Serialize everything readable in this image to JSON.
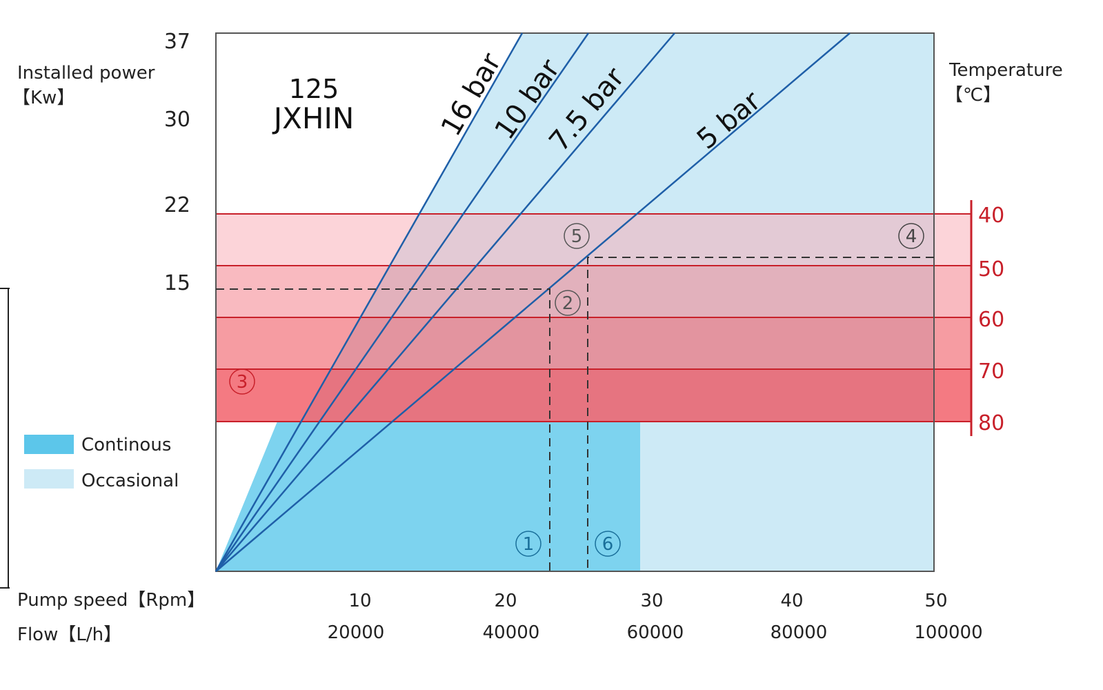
{
  "chart_data": {
    "type": "area",
    "title": [
      "125",
      "JXHIN"
    ],
    "ylabel": [
      "Installed power",
      "【Kw】"
    ],
    "y_ticks": [
      "37",
      "30",
      "22",
      "15"
    ],
    "y2label": [
      "Temperature",
      "【℃】"
    ],
    "y2_ticks": [
      "40",
      "50",
      "60",
      "70",
      "80"
    ],
    "xlabel": "Pump speed【Rpm】",
    "x_ticks": [
      "10",
      "20",
      "30",
      "40",
      "50"
    ],
    "x2label": "Flow【L/h】",
    "x2_ticks": [
      "20000",
      "40000",
      "60000",
      "80000",
      "100000"
    ],
    "series": [
      {
        "name": "16 bar"
      },
      {
        "name": "10 bar"
      },
      {
        "name": "7.5 bar"
      },
      {
        "name": "5 bar"
      }
    ],
    "legend": [
      {
        "label": "Continous",
        "color": "#5cc6ea"
      },
      {
        "label": "Occasional",
        "color": "#cdeaf6"
      }
    ],
    "legend_placement": "left",
    "markers": [
      "1",
      "2",
      "3",
      "4",
      "5",
      "6"
    ],
    "colors": {
      "continuous": "#7dd3ef",
      "occasional": "#cdeaf6",
      "line": "#1f5fa8",
      "temperature": "#c8202a"
    }
  }
}
